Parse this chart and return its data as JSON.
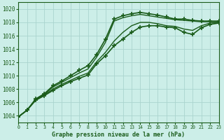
{
  "title": "Graphe pression niveau de la mer (hPa)",
  "bg_color": "#cceee8",
  "grid_color": "#aad4ce",
  "line_color": "#1a5c1a",
  "xlim": [
    0,
    23
  ],
  "ylim": [
    1003.0,
    1021.0
  ],
  "yticks": [
    1004,
    1006,
    1008,
    1010,
    1012,
    1014,
    1016,
    1018,
    1020
  ],
  "xticks": [
    0,
    1,
    2,
    3,
    4,
    5,
    6,
    7,
    8,
    9,
    10,
    11,
    12,
    13,
    14,
    15,
    16,
    17,
    18,
    19,
    20,
    21,
    22,
    23
  ],
  "series": [
    {
      "x": [
        0,
        1,
        2,
        3,
        4,
        5,
        6,
        7,
        8,
        9,
        10,
        11,
        12,
        13,
        14,
        15,
        16,
        17,
        18,
        19,
        20,
        21,
        22,
        23
      ],
      "y": [
        1003.8,
        1004.8,
        1006.5,
        1007.3,
        1008.5,
        1009.2,
        1010.0,
        1010.8,
        1011.5,
        1013.2,
        1015.5,
        1018.5,
        1019.0,
        1019.3,
        1019.5,
        1019.3,
        1019.1,
        1018.8,
        1018.5,
        1018.5,
        1018.3,
        1018.2,
        1018.2,
        1018.2
      ],
      "marker": "+",
      "markersize": 5,
      "linewidth": 1.2,
      "zorder": 4
    },
    {
      "x": [
        0,
        1,
        2,
        3,
        4,
        5,
        6,
        7,
        8,
        9,
        10,
        11,
        12,
        13,
        14,
        15,
        16,
        17,
        18,
        19,
        20,
        21,
        22,
        23
      ],
      "y": [
        1003.8,
        1004.8,
        1006.5,
        1007.2,
        1008.3,
        1009.0,
        1009.7,
        1010.4,
        1011.0,
        1012.8,
        1015.0,
        1018.2,
        1018.7,
        1019.0,
        1019.2,
        1019.0,
        1018.8,
        1018.6,
        1018.4,
        1018.3,
        1018.2,
        1018.1,
        1018.1,
        1018.1
      ],
      "marker": null,
      "markersize": 0,
      "linewidth": 1.0,
      "zorder": 3
    },
    {
      "x": [
        0,
        1,
        2,
        3,
        4,
        5,
        6,
        7,
        8,
        9,
        10,
        11,
        12,
        13,
        14,
        15,
        16,
        17,
        18,
        19,
        20,
        21,
        22,
        23
      ],
      "y": [
        1003.8,
        1004.8,
        1006.4,
        1007.1,
        1008.0,
        1008.7,
        1009.3,
        1009.9,
        1010.4,
        1012.1,
        1013.5,
        1015.2,
        1016.5,
        1017.5,
        1018.0,
        1018.0,
        1017.8,
        1017.5,
        1017.4,
        1017.0,
        1016.8,
        1017.5,
        1017.9,
        1018.0
      ],
      "marker": null,
      "markersize": 0,
      "linewidth": 1.0,
      "zorder": 3
    },
    {
      "x": [
        0,
        1,
        2,
        3,
        4,
        5,
        6,
        7,
        8,
        9,
        10,
        11,
        12,
        13,
        14,
        15,
        16,
        17,
        18,
        19,
        20,
        21,
        22,
        23
      ],
      "y": [
        1003.8,
        1004.8,
        1006.3,
        1007.0,
        1007.8,
        1008.5,
        1009.1,
        1009.6,
        1010.1,
        1011.8,
        1013.0,
        1014.5,
        1015.5,
        1016.5,
        1017.3,
        1017.5,
        1017.5,
        1017.3,
        1017.2,
        1016.5,
        1016.2,
        1017.2,
        1017.7,
        1017.9
      ],
      "marker": "+",
      "markersize": 5,
      "linewidth": 1.2,
      "zorder": 4
    }
  ]
}
